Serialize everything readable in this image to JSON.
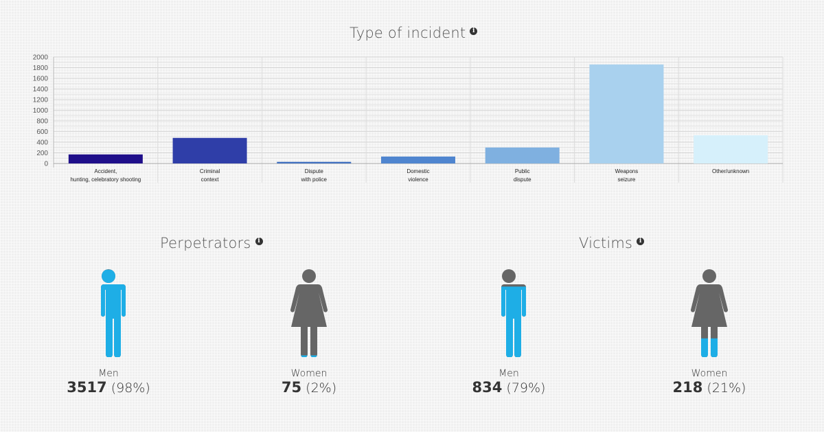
{
  "chart_title": "Type of incident",
  "chart_data": {
    "type": "bar",
    "title": "Type of incident",
    "xlabel": "",
    "ylabel": "",
    "ylim": [
      0,
      2000
    ],
    "yticks": [
      0,
      200,
      400,
      600,
      800,
      1000,
      1200,
      1400,
      1600,
      1800,
      2000
    ],
    "grid": true,
    "legend": "none",
    "categories": [
      "Accident, hunting, celebratory shooting",
      "Criminal context",
      "Dispute with police",
      "Domestic violence",
      "Public dispute",
      "Weapons seizure",
      "Other/unknown"
    ],
    "category_lines": [
      [
        "Accident,",
        "hunting, celebratory shooting"
      ],
      [
        "Criminal",
        "context"
      ],
      [
        "Dispute",
        "with police"
      ],
      [
        "Domestic",
        "violence"
      ],
      [
        "Public",
        "dispute"
      ],
      [
        "Weapons",
        "seizure"
      ],
      [
        "Other/unknown"
      ]
    ],
    "values": [
      170,
      480,
      30,
      130,
      300,
      1860,
      530
    ],
    "colors": [
      "#1f0f8a",
      "#2f3ea8",
      "#3f6fbf",
      "#4f85cf",
      "#7fb0e0",
      "#a9d1ee",
      "#d6f0fb"
    ]
  },
  "perpetrators": {
    "title": "Perpetrators",
    "men": {
      "label": "Men",
      "count": "3517",
      "pct": "(98%)",
      "fill": 0.98
    },
    "women": {
      "label": "Women",
      "count": "75",
      "pct": "(2%)",
      "fill": 0.02
    }
  },
  "victims": {
    "title": "Victims",
    "men": {
      "label": "Men",
      "count": "834",
      "pct": "(79%)",
      "fill": 0.79
    },
    "women": {
      "label": "Women",
      "count": "218",
      "pct": "(21%)",
      "fill": 0.21
    }
  },
  "colors": {
    "fill": "#1eaee6",
    "empty": "#666666"
  },
  "info_icon_glyph": "i"
}
